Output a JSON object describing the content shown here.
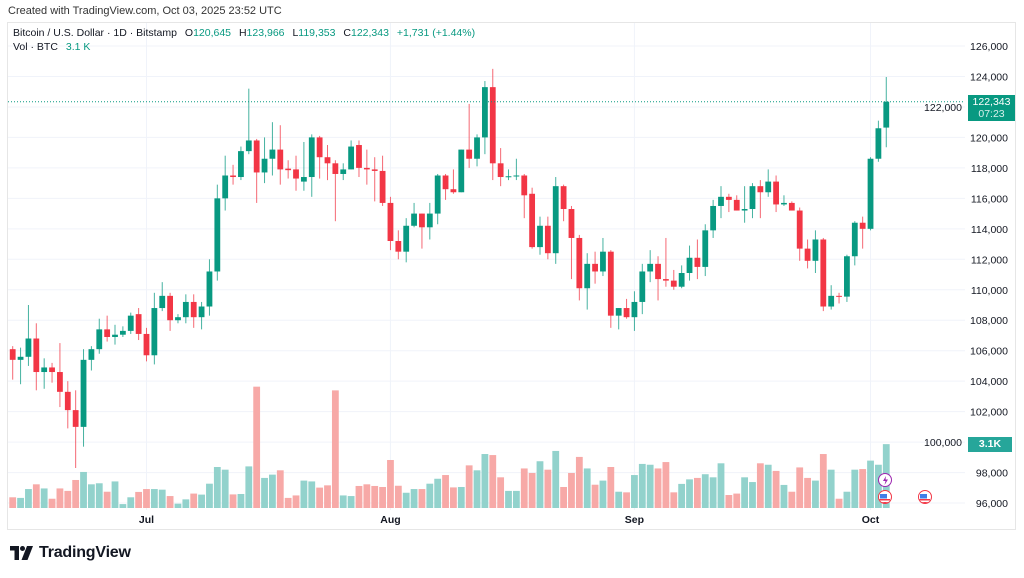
{
  "header": {
    "created": "Created with TradingView.com, Oct 03, 2025 23:52 UTC"
  },
  "legend": {
    "symbol": "Bitcoin / U.S. Dollar · 1D · Bitstamp",
    "o_label": "O",
    "o_value": "120,645",
    "h_label": "H",
    "h_value": "123,966",
    "l_label": "L",
    "l_value": "119,353",
    "c_label": "C",
    "c_value": "122,343",
    "change": "+1,731 (+1.44%)",
    "vol_label": "Vol · BTC",
    "vol_value": "3.1 K"
  },
  "last_price": {
    "value": "122,343",
    "countdown": "07:23"
  },
  "volume_tag": "3.1K",
  "footer": {
    "brand": "TradingView"
  },
  "colors": {
    "up": "#089981",
    "down": "#f23645",
    "vol_up": "#92d2cc",
    "vol_down": "#f7a9a7",
    "grid": "#f0f3fa"
  },
  "chart_data": {
    "type": "candlestick",
    "title": "Bitcoin / U.S. Dollar · 1D · Bitstamp",
    "price_unit": "USD thousands",
    "volume_unit": "BTC thousands",
    "ylim": [
      95,
      127
    ],
    "price_ticks": [
      "126,000",
      "124,000",
      "122,000",
      "120,000",
      "118,000",
      "116,000",
      "114,000",
      "112,000",
      "110,000",
      "108,000",
      "106,000",
      "104,000",
      "102,000",
      "100,000",
      "98,000",
      "96,000"
    ],
    "price_tick_values": [
      126,
      124,
      122,
      120,
      118,
      116,
      114,
      112,
      110,
      108,
      106,
      104,
      102,
      100,
      98,
      96
    ],
    "months": [
      {
        "label": "Jul",
        "index": 17
      },
      {
        "label": "Aug",
        "index": 48
      },
      {
        "label": "Sep",
        "index": 79
      },
      {
        "label": "Oct",
        "index": 109
      }
    ],
    "last_close": 122.343,
    "ohlc": [
      [
        106.1,
        106.3,
        104.1,
        105.4
      ],
      [
        105.4,
        106.2,
        103.8,
        105.6
      ],
      [
        105.6,
        109.0,
        105.0,
        106.8
      ],
      [
        106.8,
        107.8,
        103.4,
        104.6
      ],
      [
        104.6,
        105.5,
        103.5,
        104.9
      ],
      [
        104.9,
        105.2,
        103.9,
        104.6
      ],
      [
        104.6,
        106.5,
        102.3,
        103.3
      ],
      [
        103.3,
        104.0,
        100.9,
        102.1
      ],
      [
        102.1,
        103.4,
        98.3,
        101.0
      ],
      [
        101.0,
        106.1,
        99.7,
        105.4
      ],
      [
        105.4,
        106.3,
        104.7,
        106.1
      ],
      [
        106.1,
        108.1,
        105.8,
        107.4
      ],
      [
        107.4,
        108.3,
        106.6,
        106.9
      ],
      [
        106.9,
        107.7,
        106.4,
        107.05
      ],
      [
        107.05,
        107.6,
        106.9,
        107.3
      ],
      [
        107.3,
        108.5,
        107.1,
        108.3
      ],
      [
        108.4,
        108.8,
        106.7,
        107.1
      ],
      [
        107.1,
        107.5,
        105.3,
        105.7
      ],
      [
        105.7,
        109.8,
        105.1,
        108.8
      ],
      [
        108.8,
        110.5,
        108.6,
        109.6
      ],
      [
        109.6,
        109.8,
        107.3,
        108.0
      ],
      [
        108.0,
        108.4,
        107.8,
        108.2
      ],
      [
        108.2,
        109.7,
        107.8,
        109.2
      ],
      [
        109.2,
        109.7,
        107.5,
        108.2
      ],
      [
        108.2,
        109.2,
        107.4,
        108.9
      ],
      [
        108.9,
        112.0,
        108.3,
        111.2
      ],
      [
        111.2,
        116.9,
        110.6,
        116.0
      ],
      [
        116.0,
        118.8,
        115.2,
        117.5
      ],
      [
        117.5,
        118.2,
        116.9,
        117.4
      ],
      [
        117.4,
        119.4,
        117.2,
        119.1
      ],
      [
        119.1,
        123.2,
        118.9,
        119.8
      ],
      [
        119.8,
        119.9,
        115.7,
        117.7
      ],
      [
        117.7,
        120.0,
        117.0,
        118.6
      ],
      [
        118.6,
        121.0,
        117.5,
        119.2
      ],
      [
        119.2,
        120.8,
        116.9,
        117.9
      ],
      [
        117.95,
        118.5,
        117.3,
        117.85
      ],
      [
        117.9,
        118.8,
        116.5,
        117.3
      ],
      [
        117.1,
        119.7,
        116.5,
        117.4
      ],
      [
        117.4,
        120.2,
        116.1,
        120.0
      ],
      [
        120.0,
        120.1,
        117.3,
        118.7
      ],
      [
        118.7,
        119.5,
        117.2,
        118.3
      ],
      [
        118.3,
        118.5,
        114.5,
        117.6
      ],
      [
        117.6,
        118.3,
        117.2,
        117.9
      ],
      [
        117.9,
        119.8,
        117.9,
        119.4
      ],
      [
        119.5,
        119.8,
        117.4,
        118.0
      ],
      [
        118.0,
        119.2,
        116.9,
        117.9
      ],
      [
        117.9,
        118.7,
        115.8,
        117.8
      ],
      [
        117.8,
        118.8,
        115.5,
        115.7
      ],
      [
        115.7,
        116.1,
        112.6,
        113.2
      ],
      [
        113.2,
        113.9,
        112.0,
        112.5
      ],
      [
        112.5,
        114.7,
        111.8,
        114.2
      ],
      [
        114.2,
        115.7,
        114.1,
        115.0
      ],
      [
        115.0,
        115.0,
        112.7,
        114.1
      ],
      [
        114.1,
        115.7,
        113.3,
        115.0
      ],
      [
        115.0,
        117.6,
        114.3,
        117.5
      ],
      [
        117.5,
        117.6,
        115.9,
        116.6
      ],
      [
        116.6,
        117.9,
        116.3,
        116.4
      ],
      [
        116.4,
        119.2,
        116.4,
        119.2
      ],
      [
        119.2,
        122.2,
        118.0,
        118.6
      ],
      [
        118.6,
        120.2,
        118.1,
        120.0
      ],
      [
        120.0,
        123.7,
        118.9,
        123.3
      ],
      [
        123.3,
        124.5,
        117.2,
        118.3
      ],
      [
        118.3,
        119.3,
        116.8,
        117.4
      ],
      [
        117.4,
        117.9,
        117.2,
        117.45
      ],
      [
        117.45,
        118.6,
        117.2,
        117.5
      ],
      [
        117.5,
        117.6,
        114.7,
        116.2
      ],
      [
        116.3,
        116.7,
        112.7,
        112.8
      ],
      [
        112.8,
        114.8,
        112.3,
        114.2
      ],
      [
        114.2,
        114.8,
        112.0,
        112.4
      ],
      [
        112.4,
        117.4,
        111.7,
        116.8
      ],
      [
        116.8,
        116.9,
        114.5,
        115.3
      ],
      [
        115.3,
        115.5,
        110.7,
        113.4
      ],
      [
        113.4,
        113.6,
        109.3,
        110.1
      ],
      [
        110.1,
        112.4,
        108.7,
        111.7
      ],
      [
        111.7,
        112.5,
        110.4,
        111.2
      ],
      [
        111.2,
        113.4,
        110.9,
        112.5
      ],
      [
        112.5,
        112.6,
        107.5,
        108.3
      ],
      [
        108.3,
        108.8,
        107.4,
        108.8
      ],
      [
        108.8,
        109.4,
        108.1,
        108.2
      ],
      [
        108.2,
        109.9,
        107.3,
        109.2
      ],
      [
        109.2,
        111.7,
        108.4,
        111.2
      ],
      [
        111.2,
        112.6,
        110.5,
        111.7
      ],
      [
        111.7,
        112.2,
        109.3,
        110.7
      ],
      [
        110.7,
        113.4,
        110.2,
        110.6
      ],
      [
        110.6,
        111.3,
        110.0,
        110.2
      ],
      [
        110.2,
        111.6,
        110.1,
        111.1
      ],
      [
        111.1,
        112.9,
        110.6,
        112.1
      ],
      [
        112.1,
        113.3,
        110.7,
        111.5
      ],
      [
        111.5,
        114.3,
        110.9,
        113.9
      ],
      [
        113.9,
        115.9,
        113.4,
        115.5
      ],
      [
        115.5,
        116.8,
        114.7,
        116.1
      ],
      [
        116.1,
        116.3,
        115.1,
        115.9
      ],
      [
        115.9,
        116.2,
        115.2,
        115.2
      ],
      [
        115.2,
        116.8,
        114.4,
        115.3
      ],
      [
        115.3,
        117.0,
        114.7,
        116.8
      ],
      [
        116.8,
        117.2,
        114.7,
        116.4
      ],
      [
        116.4,
        117.9,
        116.1,
        117.1
      ],
      [
        117.1,
        117.5,
        115.1,
        115.6
      ],
      [
        115.6,
        116.2,
        115.5,
        115.7
      ],
      [
        115.7,
        115.8,
        115.2,
        115.2
      ],
      [
        115.2,
        115.4,
        111.9,
        112.7
      ],
      [
        112.7,
        113.3,
        111.4,
        111.9
      ],
      [
        111.9,
        113.9,
        111.1,
        113.3
      ],
      [
        113.3,
        113.4,
        108.6,
        108.9
      ],
      [
        108.9,
        110.3,
        108.7,
        109.6
      ],
      [
        109.6,
        109.8,
        109.1,
        109.55
      ],
      [
        109.55,
        112.3,
        109.2,
        112.2
      ],
      [
        112.2,
        114.5,
        111.6,
        114.4
      ],
      [
        114.4,
        114.8,
        112.7,
        114.0
      ],
      [
        114.0,
        118.7,
        113.9,
        118.6
      ],
      [
        118.6,
        121.1,
        118.4,
        120.6
      ],
      [
        120.645,
        123.966,
        119.353,
        122.343
      ]
    ],
    "volume": [
      0.52,
      0.49,
      0.92,
      1.15,
      0.95,
      0.45,
      0.95,
      0.83,
      1.36,
      1.75,
      1.15,
      1.2,
      0.79,
      1.29,
      0.19,
      0.52,
      0.78,
      0.92,
      0.92,
      0.89,
      0.58,
      0.21,
      0.42,
      0.7,
      0.65,
      1.18,
      1.99,
      1.86,
      0.66,
      0.68,
      2.02,
      5.89,
      1.46,
      1.62,
      1.83,
      0.49,
      0.61,
      1.33,
      1.29,
      0.99,
      1.1,
      5.71,
      0.61,
      0.58,
      1.07,
      1.15,
      1.07,
      1.02,
      2.33,
      1.08,
      0.74,
      0.92,
      0.92,
      1.18,
      1.42,
      1.6,
      1.0,
      1.02,
      2.07,
      1.83,
      2.62,
      2.57,
      1.49,
      0.83,
      0.83,
      1.92,
      1.7,
      2.27,
      1.86,
      2.77,
      1.02,
      1.7,
      2.48,
      1.92,
      1.13,
      1.33,
      1.99,
      0.79,
      0.76,
      1.6,
      2.14,
      2.1,
      1.92,
      2.23,
      0.76,
      1.17,
      1.39,
      1.46,
      1.64,
      1.49,
      2.17,
      0.63,
      0.7,
      1.49,
      1.26,
      2.17,
      2.1,
      1.8,
      1.12,
      0.79,
      1.97,
      1.46,
      1.33,
      2.62,
      1.86,
      0.45,
      0.79,
      1.86,
      1.89,
      2.3,
      2.1,
      3.1
    ]
  }
}
